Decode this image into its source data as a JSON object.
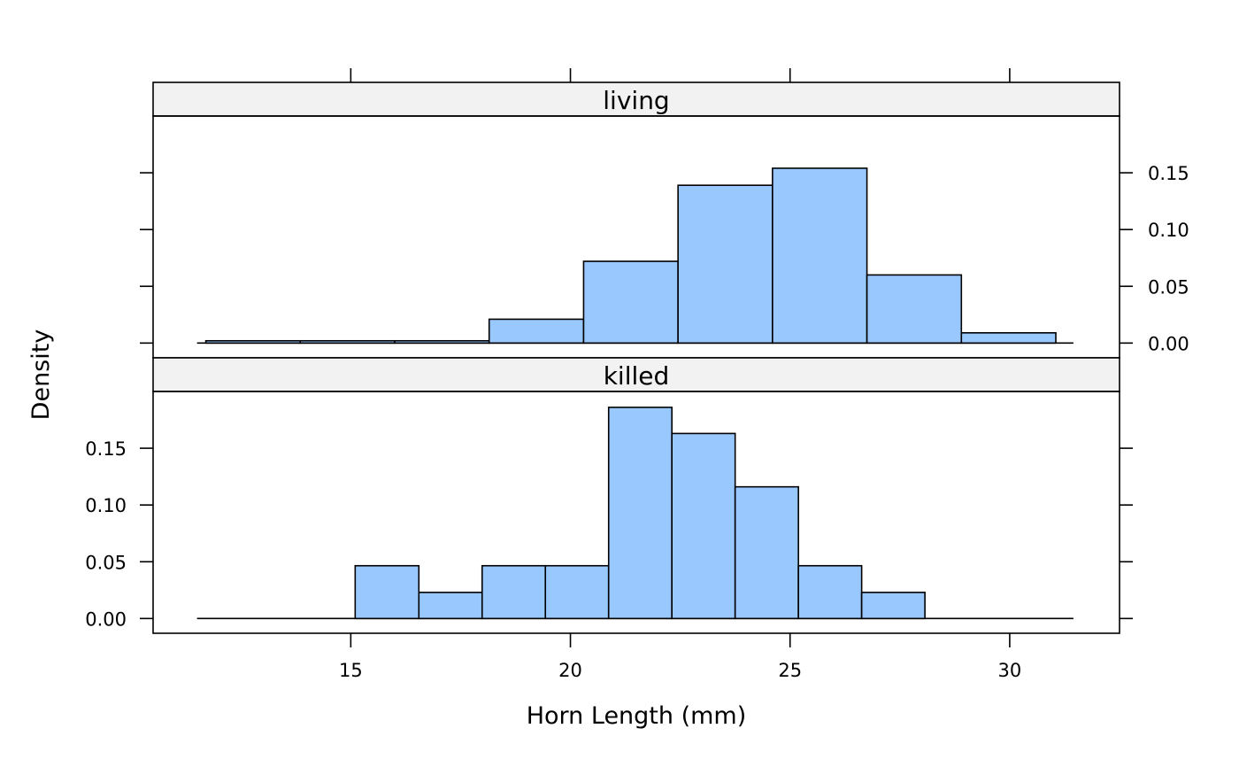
{
  "chart_data": {
    "type": "bar",
    "subtype": "histogram",
    "xlabel": "Horn Length (mm)",
    "ylabel": "Density",
    "xlim": [
      10.5,
      32.5
    ],
    "ylim": [
      -0.013,
      0.2
    ],
    "x_ticks": [
      15,
      20,
      25,
      30
    ],
    "y_ticks": [
      0.0,
      0.05,
      0.1,
      0.15
    ],
    "y_tick_labels": [
      "0.00",
      "0.05",
      "0.10",
      "0.15"
    ],
    "bar_color": "#99c8ff",
    "strip_color": "#f2f2f2",
    "panels": [
      {
        "name": "living",
        "bin_edges": [
          11.7,
          13.85,
          16.0,
          18.15,
          20.3,
          22.45,
          24.6,
          26.75,
          28.9,
          31.05
        ],
        "values": [
          0.002,
          0.002,
          0.002,
          0.021,
          0.072,
          0.139,
          0.154,
          0.06,
          0.009
        ],
        "y_axis_side": "right"
      },
      {
        "name": "killed",
        "bin_edges": [
          15.1,
          16.55,
          17.99,
          19.43,
          20.87,
          22.31,
          23.75,
          25.19,
          26.63,
          28.07
        ],
        "values": [
          0.0465,
          0.023,
          0.0465,
          0.0465,
          0.186,
          0.163,
          0.116,
          0.0465,
          0.023
        ],
        "y_axis_side": "left"
      }
    ]
  }
}
